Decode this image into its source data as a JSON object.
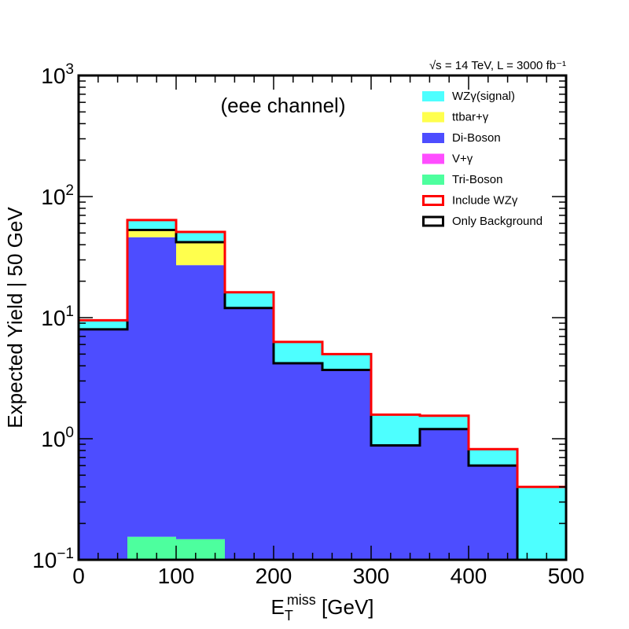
{
  "chart_data": {
    "type": "histogram-stacked",
    "energy_label": "√s = 14 TeV, L = 3000 fb⁻¹",
    "annotation": "(eee channel)",
    "xlabel": "E_T^miss [GeV]",
    "xlabel_main": "E",
    "xlabel_sub": "T",
    "xlabel_sup": "miss",
    "xlabel_unit": " [GeV]",
    "ylabel": "Expected Yield | 50 GeV",
    "xlim": [
      0,
      500
    ],
    "ylim": [
      0.1,
      1000
    ],
    "yscale": "log",
    "x_ticks": [
      "0",
      "100",
      "200",
      "300",
      "400",
      "500"
    ],
    "x_tick_values": [
      0,
      100,
      200,
      300,
      400,
      500
    ],
    "y_ticks": [
      {
        "base": "10",
        "exp": "−1",
        "value": 0.1
      },
      {
        "base": "10",
        "exp": "0",
        "value": 1
      },
      {
        "base": "10",
        "exp": "1",
        "value": 10
      },
      {
        "base": "10",
        "exp": "2",
        "value": 100
      },
      {
        "base": "10",
        "exp": "3",
        "value": 1000
      }
    ],
    "bin_edges": [
      0,
      50,
      100,
      150,
      200,
      250,
      300,
      350,
      400,
      450,
      500
    ],
    "stack_order": [
      "Tri-Boson",
      "V+γ",
      "Di-Boson",
      "ttbar+γ",
      "WZγ(signal)"
    ],
    "series": [
      {
        "name": "WZγ(signal)",
        "color": "#4dffff",
        "values": [
          1.5,
          11,
          9,
          4.2,
          2.1,
          1.3,
          0.7,
          0.35,
          0.22,
          0.4
        ]
      },
      {
        "name": "ttbar+γ",
        "color": "#ffff4d",
        "values": [
          0,
          7,
          15,
          0,
          0,
          0,
          0,
          0,
          0,
          0
        ]
      },
      {
        "name": "Di-Boson",
        "color": "#4d4dff",
        "values": [
          8.0,
          46,
          27,
          12,
          4.2,
          3.7,
          0.88,
          1.2,
          0.6,
          0
        ]
      },
      {
        "name": "V+γ",
        "color": "#ff4dff",
        "values": [
          0,
          0,
          0,
          0,
          0,
          0,
          0,
          0,
          0,
          0
        ]
      },
      {
        "name": "Tri-Boson",
        "color": "#4dff9e",
        "values": [
          0,
          0.155,
          0.148,
          0,
          0,
          0,
          0,
          0,
          0,
          0
        ]
      }
    ],
    "totals": {
      "include_signal": [
        9.5,
        64,
        51,
        16.2,
        6.3,
        5.0,
        1.58,
        1.55,
        0.82,
        0.4
      ],
      "only_background": [
        8.0,
        53,
        42,
        12,
        4.2,
        3.7,
        0.88,
        1.2,
        0.6,
        0
      ]
    },
    "legend": {
      "placement": "top-right",
      "items": [
        {
          "label": "WZγ(signal)",
          "kind": "fill",
          "color": "#4dffff"
        },
        {
          "label": "ttbar+γ",
          "kind": "fill",
          "color": "#ffff4d"
        },
        {
          "label": "Di-Boson",
          "kind": "fill",
          "color": "#4d4dff"
        },
        {
          "label": "V+γ",
          "kind": "fill",
          "color": "#ff4dff"
        },
        {
          "label": "Tri-Boson",
          "kind": "fill",
          "color": "#4dff9e"
        },
        {
          "label": "Include WZγ",
          "kind": "outline",
          "color": "#ff0000"
        },
        {
          "label": "Only Background",
          "kind": "outline",
          "color": "#000000"
        }
      ]
    },
    "line_colors": {
      "include": "#ff0000",
      "background": "#000000",
      "frame": "#000000"
    }
  }
}
